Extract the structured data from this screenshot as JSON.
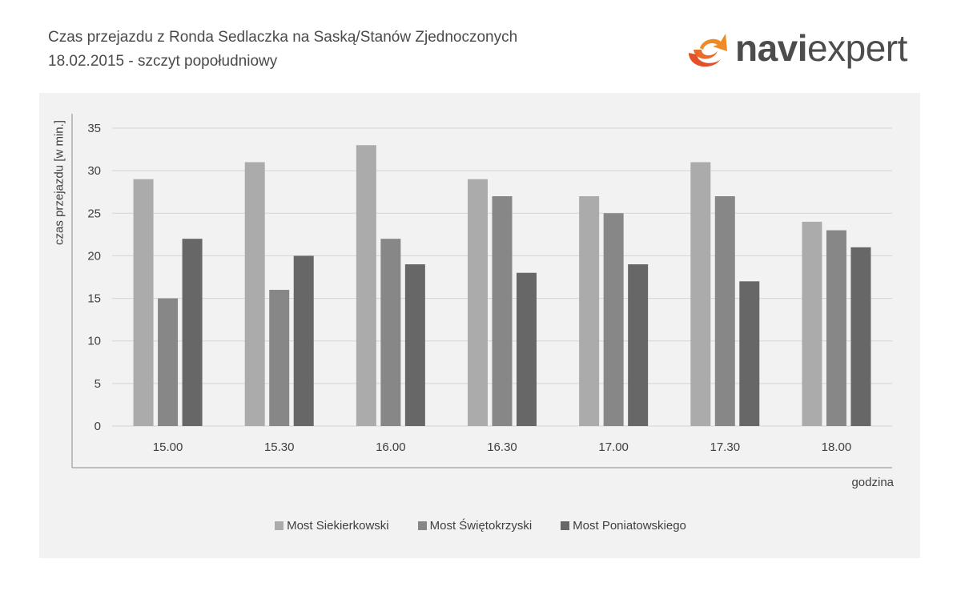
{
  "header": {
    "title_line1": "Czas przejazdu z Ronda Sedlaczka na Saską/Stanów Zjednoczonych",
    "title_line2": "18.02.2015 - szczyt popołudniowy"
  },
  "logo": {
    "bold_part": "navi",
    "light_part": "expert",
    "colors": [
      "#e2512a",
      "#f08a24"
    ]
  },
  "chart_data": {
    "type": "bar",
    "title": "Czas przejazdu z Ronda Sedlaczka na Saską/Stanów Zjednoczonych",
    "subtitle": "18.02.2015 - szczyt popołudniowy",
    "categories": [
      "15.00",
      "15.30",
      "16.00",
      "16.30",
      "17.00",
      "17.30",
      "18.00"
    ],
    "series": [
      {
        "name": "Most Siekierkowski",
        "color": "#ababab",
        "values": [
          29,
          31,
          33,
          29,
          27,
          31,
          24
        ]
      },
      {
        "name": "Most Świętokrzyski",
        "color": "#878787",
        "values": [
          15,
          16,
          22,
          27,
          25,
          27,
          23
        ]
      },
      {
        "name": "Most Poniatowskiego",
        "color": "#676767",
        "values": [
          22,
          20,
          19,
          18,
          19,
          17,
          21
        ]
      }
    ],
    "xlabel": "godzina",
    "ylabel": "czas przejazdu [w min.]",
    "ylim": [
      0,
      35
    ],
    "yticks": [
      0,
      5,
      10,
      15,
      20,
      25,
      30,
      35
    ],
    "grid": true,
    "legend_position": "bottom"
  }
}
